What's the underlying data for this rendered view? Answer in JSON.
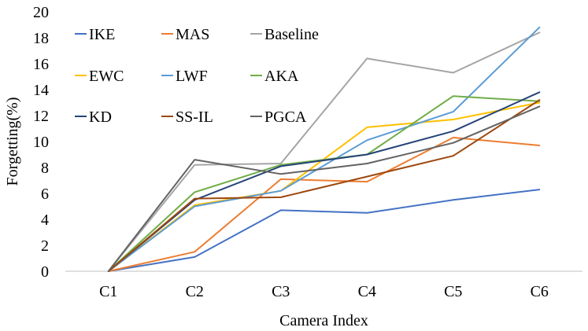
{
  "chart_data": {
    "type": "line",
    "title": "",
    "xlabel": "Camera Index",
    "ylabel": "Forgetting(%)",
    "ylim": [
      0,
      20
    ],
    "yticks": [
      0,
      2,
      4,
      6,
      8,
      10,
      12,
      14,
      16,
      18,
      20
    ],
    "ytick_labels": [
      "0",
      "2",
      "4",
      "6",
      "8",
      "10",
      "12",
      "14",
      "16",
      "18",
      "20"
    ],
    "categories": [
      "C1",
      "C2",
      "C3",
      "C4",
      "C5",
      "C6"
    ],
    "grid": false,
    "legend_position": "top-left",
    "series": [
      {
        "name": "IKE",
        "color": "#4472C4",
        "values": [
          0,
          1.1,
          4.7,
          4.5,
          5.5,
          6.3
        ]
      },
      {
        "name": "MAS",
        "color": "#ED7D31",
        "values": [
          0,
          1.5,
          7.1,
          6.9,
          10.3,
          9.7
        ]
      },
      {
        "name": "Baseline",
        "color": "#A5A5A5",
        "values": [
          0,
          8.2,
          8.3,
          16.4,
          15.3,
          18.4
        ]
      },
      {
        "name": "EWC",
        "color": "#FFC000",
        "values": [
          0,
          5.1,
          6.2,
          11.1,
          11.7,
          13.0
        ]
      },
      {
        "name": "LWF",
        "color": "#5B9BD5",
        "values": [
          0,
          5.0,
          6.2,
          10.1,
          12.3,
          18.8
        ]
      },
      {
        "name": "AKA",
        "color": "#70AD47",
        "values": [
          0,
          6.1,
          8.2,
          9.0,
          13.5,
          13.1
        ]
      },
      {
        "name": "KD",
        "color": "#264478",
        "values": [
          0,
          5.5,
          8.1,
          9.0,
          10.8,
          13.8
        ]
      },
      {
        "name": "SS-IL",
        "color": "#9E480E",
        "values": [
          0,
          5.6,
          5.7,
          7.3,
          8.9,
          13.2
        ]
      },
      {
        "name": "PGCA",
        "color": "#636363",
        "values": [
          0,
          8.6,
          7.5,
          8.3,
          9.9,
          12.7
        ]
      }
    ]
  }
}
